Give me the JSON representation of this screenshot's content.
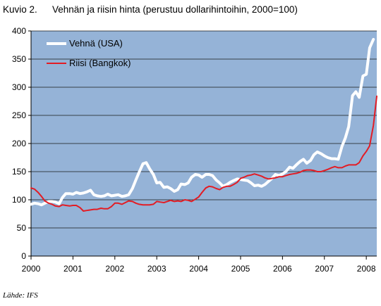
{
  "figure": {
    "label": "Kuvio 2.",
    "title": "Vehnän ja riisin hinta (perustuu dollarihintoihin, 2000=100)",
    "source": "Lähde: IFS"
  },
  "chart_data": {
    "type": "line",
    "title": "Vehnän ja riisin hinta (perustuu dollarihintoihin, 2000=100)",
    "xlabel": "",
    "ylabel": "",
    "xlim": [
      2000.0,
      2008.25
    ],
    "ylim": [
      0,
      400
    ],
    "y_ticks": [
      0,
      50,
      100,
      150,
      200,
      250,
      300,
      350,
      400
    ],
    "x_ticks": [
      "2000",
      "2001",
      "2002",
      "2003",
      "2004",
      "2005",
      "2006",
      "2007",
      "2008"
    ],
    "x_tick_values": [
      2000,
      2001,
      2002,
      2003,
      2004,
      2005,
      2006,
      2007,
      2008
    ],
    "grid": "horizontal",
    "legend_position": "top-left",
    "plot_background": "#95b3d7",
    "series": [
      {
        "name": "Vehnä (USA)",
        "color": "#ffffff",
        "points": [
          [
            2000.0,
            92
          ],
          [
            2000.08,
            94
          ],
          [
            2000.17,
            93
          ],
          [
            2000.25,
            91
          ],
          [
            2000.33,
            94
          ],
          [
            2000.42,
            97
          ],
          [
            2000.5,
            97
          ],
          [
            2000.58,
            96
          ],
          [
            2000.67,
            93
          ],
          [
            2000.75,
            104
          ],
          [
            2000.83,
            111
          ],
          [
            2000.92,
            111
          ],
          [
            2001.0,
            110
          ],
          [
            2001.08,
            113
          ],
          [
            2001.17,
            111
          ],
          [
            2001.25,
            112
          ],
          [
            2001.33,
            114
          ],
          [
            2001.42,
            117
          ],
          [
            2001.5,
            109
          ],
          [
            2001.58,
            107
          ],
          [
            2001.67,
            106
          ],
          [
            2001.75,
            107
          ],
          [
            2001.83,
            110
          ],
          [
            2001.92,
            107
          ],
          [
            2002.0,
            108
          ],
          [
            2002.08,
            109
          ],
          [
            2002.17,
            106
          ],
          [
            2002.25,
            107
          ],
          [
            2002.33,
            109
          ],
          [
            2002.42,
            120
          ],
          [
            2002.5,
            135
          ],
          [
            2002.58,
            149
          ],
          [
            2002.67,
            164
          ],
          [
            2002.75,
            166
          ],
          [
            2002.83,
            155
          ],
          [
            2002.92,
            145
          ],
          [
            2003.0,
            130
          ],
          [
            2003.08,
            131
          ],
          [
            2003.17,
            122
          ],
          [
            2003.25,
            123
          ],
          [
            2003.33,
            120
          ],
          [
            2003.42,
            115
          ],
          [
            2003.5,
            118
          ],
          [
            2003.58,
            128
          ],
          [
            2003.67,
            127
          ],
          [
            2003.75,
            130
          ],
          [
            2003.83,
            140
          ],
          [
            2003.92,
            145
          ],
          [
            2004.0,
            144
          ],
          [
            2004.08,
            140
          ],
          [
            2004.17,
            145
          ],
          [
            2004.25,
            145
          ],
          [
            2004.33,
            143
          ],
          [
            2004.42,
            135
          ],
          [
            2004.5,
            130
          ],
          [
            2004.58,
            124
          ],
          [
            2004.67,
            127
          ],
          [
            2004.75,
            131
          ],
          [
            2004.83,
            134
          ],
          [
            2004.92,
            137
          ],
          [
            2005.0,
            136
          ],
          [
            2005.08,
            135
          ],
          [
            2005.17,
            134
          ],
          [
            2005.25,
            130
          ],
          [
            2005.33,
            125
          ],
          [
            2005.42,
            126
          ],
          [
            2005.5,
            124
          ],
          [
            2005.58,
            127
          ],
          [
            2005.67,
            133
          ],
          [
            2005.75,
            138
          ],
          [
            2005.83,
            145
          ],
          [
            2005.92,
            143
          ],
          [
            2006.0,
            146
          ],
          [
            2006.08,
            150
          ],
          [
            2006.17,
            158
          ],
          [
            2006.25,
            156
          ],
          [
            2006.33,
            162
          ],
          [
            2006.42,
            168
          ],
          [
            2006.5,
            172
          ],
          [
            2006.58,
            165
          ],
          [
            2006.67,
            170
          ],
          [
            2006.75,
            180
          ],
          [
            2006.83,
            185
          ],
          [
            2006.92,
            182
          ],
          [
            2007.0,
            178
          ],
          [
            2007.08,
            175
          ],
          [
            2007.17,
            173
          ],
          [
            2007.25,
            173
          ],
          [
            2007.33,
            172
          ],
          [
            2007.42,
            195
          ],
          [
            2007.5,
            210
          ],
          [
            2007.58,
            230
          ],
          [
            2007.67,
            285
          ],
          [
            2007.75,
            292
          ],
          [
            2007.83,
            282
          ],
          [
            2007.92,
            320
          ],
          [
            2008.0,
            323
          ],
          [
            2008.08,
            370
          ],
          [
            2008.17,
            385
          ]
        ]
      },
      {
        "name": "Riisi (Bangkok)",
        "color": "#e31c24",
        "points": [
          [
            2000.0,
            121
          ],
          [
            2000.08,
            119
          ],
          [
            2000.17,
            113
          ],
          [
            2000.25,
            106
          ],
          [
            2000.33,
            98
          ],
          [
            2000.42,
            94
          ],
          [
            2000.5,
            92
          ],
          [
            2000.58,
            89
          ],
          [
            2000.67,
            88
          ],
          [
            2000.75,
            91
          ],
          [
            2000.83,
            90
          ],
          [
            2000.92,
            89
          ],
          [
            2001.0,
            90
          ],
          [
            2001.08,
            90
          ],
          [
            2001.17,
            86
          ],
          [
            2001.25,
            80
          ],
          [
            2001.33,
            81
          ],
          [
            2001.42,
            82
          ],
          [
            2001.5,
            83
          ],
          [
            2001.58,
            83
          ],
          [
            2001.67,
            85
          ],
          [
            2001.75,
            84
          ],
          [
            2001.83,
            84
          ],
          [
            2001.92,
            88
          ],
          [
            2002.0,
            94
          ],
          [
            2002.08,
            94
          ],
          [
            2002.17,
            92
          ],
          [
            2002.25,
            95
          ],
          [
            2002.33,
            98
          ],
          [
            2002.42,
            97
          ],
          [
            2002.5,
            94
          ],
          [
            2002.58,
            92
          ],
          [
            2002.67,
            91
          ],
          [
            2002.75,
            91
          ],
          [
            2002.83,
            91
          ],
          [
            2002.92,
            92
          ],
          [
            2003.0,
            97
          ],
          [
            2003.08,
            96
          ],
          [
            2003.17,
            95
          ],
          [
            2003.25,
            97
          ],
          [
            2003.33,
            99
          ],
          [
            2003.42,
            97
          ],
          [
            2003.5,
            98
          ],
          [
            2003.58,
            97
          ],
          [
            2003.67,
            100
          ],
          [
            2003.75,
            99
          ],
          [
            2003.83,
            97
          ],
          [
            2003.92,
            101
          ],
          [
            2004.0,
            105
          ],
          [
            2004.08,
            113
          ],
          [
            2004.17,
            121
          ],
          [
            2004.25,
            124
          ],
          [
            2004.33,
            123
          ],
          [
            2004.42,
            120
          ],
          [
            2004.5,
            118
          ],
          [
            2004.58,
            122
          ],
          [
            2004.67,
            124
          ],
          [
            2004.75,
            124
          ],
          [
            2004.83,
            127
          ],
          [
            2004.92,
            131
          ],
          [
            2005.0,
            138
          ],
          [
            2005.08,
            140
          ],
          [
            2005.17,
            143
          ],
          [
            2005.25,
            144
          ],
          [
            2005.33,
            146
          ],
          [
            2005.42,
            144
          ],
          [
            2005.5,
            142
          ],
          [
            2005.58,
            139
          ],
          [
            2005.67,
            137
          ],
          [
            2005.75,
            138
          ],
          [
            2005.83,
            139
          ],
          [
            2005.92,
            141
          ],
          [
            2006.0,
            141
          ],
          [
            2006.08,
            143
          ],
          [
            2006.17,
            145
          ],
          [
            2006.25,
            146
          ],
          [
            2006.33,
            147
          ],
          [
            2006.42,
            149
          ],
          [
            2006.5,
            152
          ],
          [
            2006.58,
            153
          ],
          [
            2006.67,
            153
          ],
          [
            2006.75,
            152
          ],
          [
            2006.83,
            150
          ],
          [
            2006.92,
            150
          ],
          [
            2007.0,
            152
          ],
          [
            2007.08,
            154
          ],
          [
            2007.17,
            157
          ],
          [
            2007.25,
            159
          ],
          [
            2007.33,
            157
          ],
          [
            2007.42,
            157
          ],
          [
            2007.5,
            160
          ],
          [
            2007.58,
            162
          ],
          [
            2007.67,
            162
          ],
          [
            2007.75,
            162
          ],
          [
            2007.83,
            166
          ],
          [
            2007.92,
            178
          ],
          [
            2008.0,
            186
          ],
          [
            2008.08,
            196
          ],
          [
            2008.17,
            232
          ],
          [
            2008.25,
            284
          ]
        ]
      }
    ]
  }
}
